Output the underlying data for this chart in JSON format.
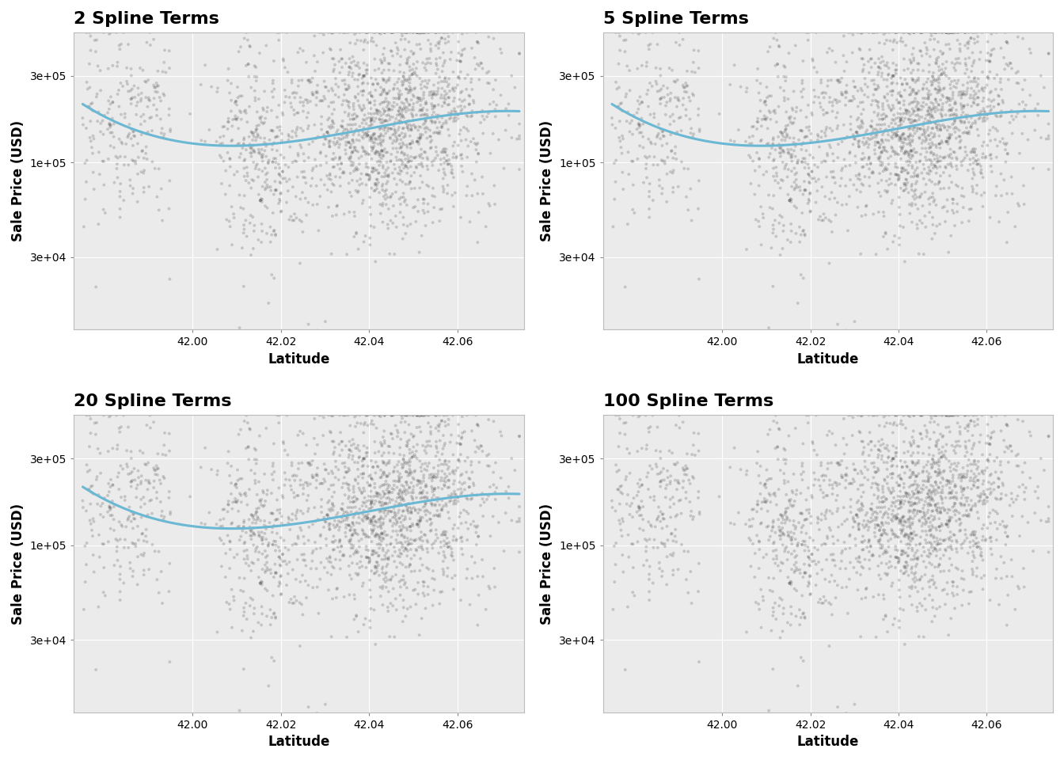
{
  "titles": [
    "2 Spline Terms",
    "5 Spline Terms",
    "20 Spline Terms",
    "100 Spline Terms"
  ],
  "spline_dfs": [
    2,
    5,
    20,
    100
  ],
  "xlabel": "Latitude",
  "ylabel": "Sale Price (USD)",
  "xlim": [
    41.973,
    42.075
  ],
  "ylim": [
    12000,
    520000
  ],
  "yticks": [
    30000,
    100000,
    300000
  ],
  "ytick_labels": [
    "3e+04",
    "1e+05",
    "3e+05"
  ],
  "xticks": [
    42.0,
    42.02,
    42.04,
    42.06
  ],
  "scatter_color": "#1a1a1a",
  "scatter_alpha": 0.18,
  "scatter_size": 8,
  "line_color": "#6BB8D4",
  "line_width": 2.2,
  "background_color": "#ffffff",
  "panel_background": "#ebebeb",
  "grid_color": "#ffffff",
  "grid_linewidth": 0.8,
  "title_fontsize": 16,
  "axis_label_fontsize": 12,
  "tick_fontsize": 10,
  "seed": 123,
  "n_points": 2000,
  "smoothing_factors": [
    25.0,
    5.0,
    0.6,
    0.04
  ]
}
